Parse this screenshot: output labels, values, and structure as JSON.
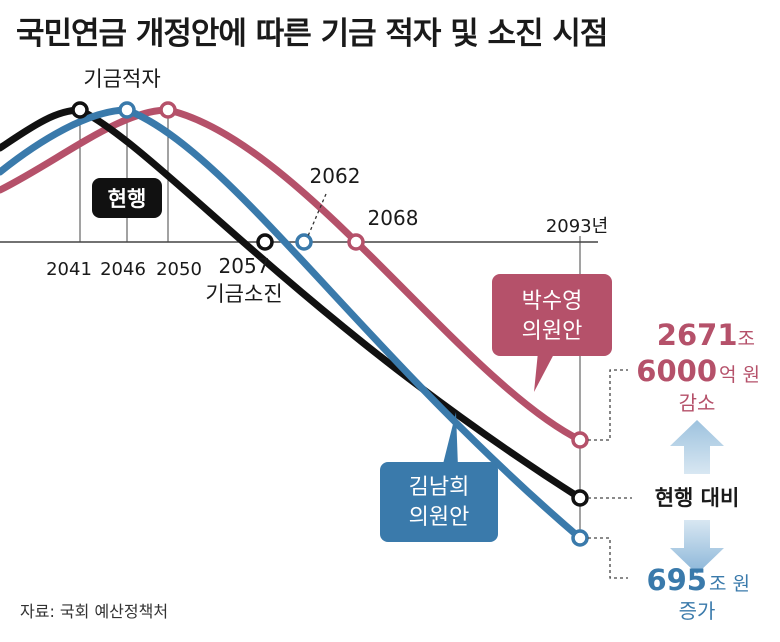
{
  "title": "국민연금 개정안에 따른 기금 적자 및 소진 시점",
  "source": "자료: 국회 예산정책처",
  "chart_data": {
    "type": "line",
    "title": "국민연금 개정안에 따른 기금 적자 및 소진 시점",
    "x_axis": {
      "end_label": "2093년",
      "tick_labels": [
        "2041",
        "2046",
        "2050"
      ]
    },
    "series": [
      {
        "name": "현행",
        "color": "#111111",
        "deficit_year": "2041",
        "depletion_year": "2057"
      },
      {
        "name": "김남희 의원안",
        "color": "#3a7aab",
        "deficit_year": "2046",
        "depletion_year": "2062"
      },
      {
        "name": "박수영 의원안",
        "color": "#b5516a",
        "deficit_year": "2050",
        "depletion_year": "2068"
      }
    ],
    "annotations": {
      "deficit_label": "기금적자",
      "depletion_label_2057": "기금소진",
      "year_2057": "2057",
      "year_2062": "2062",
      "year_2068": "2068",
      "current_box": "현행",
      "park_box_line1": "박수영",
      "park_box_line2": "의원안",
      "kim_box_line1": "김남희",
      "kim_box_line2": "의원안",
      "compare": "현행 대비",
      "decrease": {
        "big1": "2671",
        "unit1": "조",
        "big2": "6000",
        "unit2": "억 원",
        "word": "감소"
      },
      "increase": {
        "big": "695",
        "unit": "조 원",
        "word": "증가"
      }
    }
  }
}
